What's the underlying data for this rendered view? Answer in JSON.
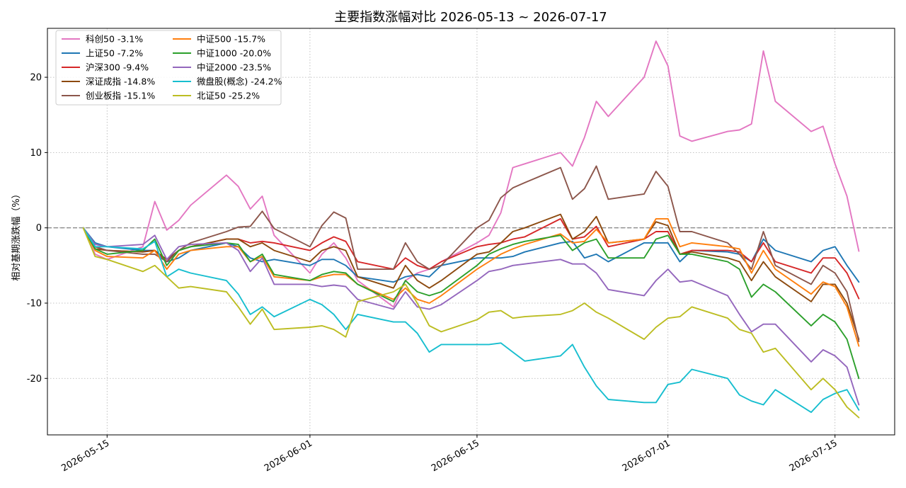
{
  "chart_data": {
    "type": "line",
    "title": "主要指数涨幅对比  2026-05-13 ~ 2026-07-17",
    "xlabel": "",
    "ylabel": "相对基期涨跌幅（%）",
    "x_tick_labels": [
      "2026-05-15",
      "2026-06-01",
      "2026-06-15",
      "2026-07-01",
      "2026-07-15"
    ],
    "x_tick_dates": [
      "2026-05-15",
      "2026-06-01",
      "2026-06-15",
      "2026-07-01",
      "2026-07-15"
    ],
    "y_ticks": [
      -20,
      -10,
      0,
      10,
      20
    ],
    "xlim": [
      "2026-05-10",
      "2026-07-20"
    ],
    "ylim": [
      -27.5,
      26.5
    ],
    "grid": true,
    "legend_position": "top-left",
    "baseline": 0,
    "x": [
      "2026-05-13",
      "2026-05-14",
      "2026-05-15",
      "2026-05-18",
      "2026-05-19",
      "2026-05-20",
      "2026-05-21",
      "2026-05-22",
      "2026-05-25",
      "2026-05-26",
      "2026-05-27",
      "2026-05-28",
      "2026-05-29",
      "2026-06-01",
      "2026-06-02",
      "2026-06-03",
      "2026-06-04",
      "2026-06-05",
      "2026-06-08",
      "2026-06-09",
      "2026-06-10",
      "2026-06-11",
      "2026-06-12",
      "2026-06-15",
      "2026-06-16",
      "2026-06-17",
      "2026-06-18",
      "2026-06-19",
      "2026-06-22",
      "2026-06-23",
      "2026-06-24",
      "2026-06-25",
      "2026-06-26",
      "2026-06-29",
      "2026-06-30",
      "2026-07-01",
      "2026-07-02",
      "2026-07-03",
      "2026-07-06",
      "2026-07-07",
      "2026-07-08",
      "2026-07-09",
      "2026-07-10",
      "2026-07-13",
      "2026-07-14",
      "2026-07-15",
      "2026-07-16",
      "2026-07-17"
    ],
    "series": [
      {
        "name": "科创50 -3.1%",
        "color": "#e377c2",
        "values": [
          0,
          -3.5,
          -4.2,
          -2.5,
          3.5,
          -0.3,
          1.0,
          3.0,
          7.0,
          5.5,
          2.5,
          4.2,
          -1.0,
          -6.0,
          -3.5,
          -2.0,
          -4.0,
          -7.0,
          -10.5,
          -7.0,
          -6.0,
          -5.5,
          -4.5,
          -2.0,
          -1.0,
          2.0,
          8.0,
          8.5,
          10.0,
          8.2,
          12.0,
          16.8,
          14.8,
          20.0,
          24.8,
          21.5,
          12.2,
          11.5,
          12.8,
          13.0,
          13.8,
          23.5,
          16.8,
          12.8,
          13.5,
          8.5,
          4.2,
          -3.1
        ]
      },
      {
        "name": "上证50 -7.2%",
        "color": "#1f77b4",
        "values": [
          0,
          -2.0,
          -2.5,
          -3.0,
          -3.0,
          -4.5,
          -4.0,
          -3.0,
          -2.0,
          -2.5,
          -4.0,
          -4.5,
          -4.2,
          -5.0,
          -4.2,
          -4.2,
          -5.0,
          -6.5,
          -7.2,
          -6.5,
          -6.2,
          -6.5,
          -5.0,
          -4.0,
          -4.0,
          -4.0,
          -3.8,
          -3.2,
          -2.0,
          -1.8,
          -4.0,
          -3.5,
          -4.5,
          -2.0,
          -2.0,
          -2.0,
          -4.5,
          -3.0,
          -3.2,
          -3.5,
          -4.5,
          -1.5,
          -3.0,
          -4.5,
          -3.0,
          -2.5,
          -5.0,
          -7.2
        ]
      },
      {
        "name": "沪深300 -9.4%",
        "color": "#d62728",
        "values": [
          0,
          -2.5,
          -3.0,
          -3.2,
          -3.0,
          -4.5,
          -3.0,
          -2.5,
          -1.5,
          -1.5,
          -2.0,
          -1.8,
          -2.0,
          -3.0,
          -2.0,
          -1.2,
          -1.8,
          -4.5,
          -5.5,
          -4.0,
          -5.0,
          -5.5,
          -4.5,
          -2.5,
          -2.2,
          -2.0,
          -1.5,
          -1.2,
          1.2,
          -1.5,
          -1.2,
          0.2,
          -2.5,
          -1.5,
          -0.5,
          -0.5,
          -3.5,
          -3.0,
          -3.0,
          -3.2,
          -4.5,
          -2.0,
          -4.5,
          -6.0,
          -4.0,
          -4.0,
          -6.0,
          -9.4
        ]
      },
      {
        "name": "深证成指 -14.8%",
        "color": "#8c4a0f",
        "values": [
          0,
          -2.8,
          -3.0,
          -3.2,
          -3.0,
          -4.2,
          -3.0,
          -2.5,
          -1.5,
          -1.5,
          -2.5,
          -2.0,
          -3.0,
          -4.5,
          -3.0,
          -2.5,
          -3.0,
          -6.5,
          -8.0,
          -5.0,
          -7.0,
          -8.0,
          -7.0,
          -3.5,
          -3.2,
          -2.0,
          -0.5,
          0.0,
          1.8,
          -1.5,
          -0.5,
          1.5,
          -2.0,
          -1.5,
          0.8,
          0.3,
          -3.5,
          -3.2,
          -4.0,
          -4.5,
          -7.0,
          -4.5,
          -6.5,
          -9.8,
          -7.5,
          -7.5,
          -10.0,
          -14.8
        ]
      },
      {
        "name": "创业板指 -15.1%",
        "color": "#8c564b",
        "values": [
          0,
          -2.5,
          -3.0,
          -3.5,
          -3.5,
          -4.5,
          -3.0,
          -2.0,
          -0.5,
          0.1,
          0.2,
          2.2,
          -0.1,
          -2.5,
          0.3,
          2.1,
          1.3,
          -5.5,
          -5.5,
          -2.0,
          -4.5,
          -5.5,
          -5.0,
          0.0,
          1.0,
          4.0,
          5.3,
          6.0,
          8.0,
          3.8,
          5.2,
          8.2,
          3.8,
          4.5,
          7.5,
          5.5,
          -0.5,
          -0.5,
          -2.0,
          -3.5,
          -5.5,
          -0.5,
          -5.0,
          -7.5,
          -5.0,
          -6.0,
          -8.5,
          -15.1
        ]
      },
      {
        "name": "中证500 -15.7%",
        "color": "#ff7f0e",
        "values": [
          0,
          -3.0,
          -3.8,
          -4.0,
          -3.0,
          -5.5,
          -3.5,
          -3.0,
          -2.5,
          -2.5,
          -4.5,
          -3.8,
          -6.5,
          -7.0,
          -6.5,
          -6.2,
          -6.2,
          -7.5,
          -9.5,
          -8.0,
          -9.5,
          -10.0,
          -9.0,
          -5.5,
          -4.5,
          -3.5,
          -2.8,
          -2.2,
          -0.8,
          -2.0,
          -1.8,
          -0.2,
          -2.0,
          -1.5,
          1.2,
          1.2,
          -2.5,
          -2.0,
          -2.5,
          -2.8,
          -6.0,
          -3.0,
          -5.5,
          -8.8,
          -7.2,
          -7.8,
          -10.5,
          -15.7
        ]
      },
      {
        "name": "中证1000 -20.0%",
        "color": "#2ca02c",
        "values": [
          0,
          -2.8,
          -3.5,
          -3.0,
          -1.5,
          -5.0,
          -3.0,
          -2.5,
          -2.0,
          -2.2,
          -4.5,
          -3.5,
          -6.2,
          -7.0,
          -6.2,
          -5.8,
          -6.0,
          -7.5,
          -9.8,
          -7.0,
          -8.5,
          -9.0,
          -8.5,
          -5.0,
          -3.5,
          -2.8,
          -2.2,
          -1.8,
          -1.0,
          -3.0,
          -2.0,
          -1.5,
          -4.0,
          -4.0,
          -1.5,
          -1.0,
          -3.5,
          -3.5,
          -4.5,
          -5.5,
          -9.2,
          -7.5,
          -8.5,
          -13.0,
          -11.5,
          -12.5,
          -14.8,
          -20.0
        ]
      },
      {
        "name": "中证2000 -23.5%",
        "color": "#9467bd",
        "values": [
          0,
          -2.2,
          -2.5,
          -2.2,
          -1.0,
          -4.2,
          -2.5,
          -2.2,
          -2.0,
          -3.0,
          -5.8,
          -4.0,
          -7.5,
          -7.5,
          -7.8,
          -7.6,
          -7.8,
          -9.5,
          -10.8,
          -8.5,
          -10.5,
          -10.8,
          -10.2,
          -7.0,
          -5.8,
          -5.5,
          -5.0,
          -4.8,
          -4.2,
          -4.8,
          -4.8,
          -6.0,
          -8.2,
          -9.0,
          -7.0,
          -5.5,
          -7.2,
          -7.0,
          -9.0,
          -11.5,
          -13.8,
          -12.8,
          -12.8,
          -17.8,
          -16.2,
          -17.0,
          -18.5,
          -23.5
        ]
      },
      {
        "name": "微盘股(概念) -24.2%",
        "color": "#17becf",
        "values": [
          0,
          -2.5,
          -2.5,
          -2.8,
          -1.8,
          -6.5,
          -5.5,
          -6.0,
          -7.0,
          -8.8,
          -11.5,
          -10.5,
          -11.8,
          -9.5,
          -10.2,
          -11.5,
          -13.5,
          -11.5,
          -12.5,
          -12.5,
          -14.0,
          -16.5,
          -15.5,
          -15.5,
          -15.5,
          -15.3,
          -16.5,
          -17.7,
          -17.0,
          -15.5,
          -18.5,
          -21.0,
          -22.8,
          -23.2,
          -23.2,
          -20.8,
          -20.5,
          -18.8,
          -20.0,
          -22.2,
          -23.0,
          -23.5,
          -21.5,
          -24.5,
          -22.8,
          -22.0,
          -21.5,
          -24.2
        ]
      },
      {
        "name": "北证50 -25.2%",
        "color": "#bcbd22",
        "values": [
          0,
          -3.8,
          -4.2,
          -5.8,
          -5.0,
          -6.5,
          -8.0,
          -7.8,
          -8.5,
          -10.5,
          -12.8,
          -10.8,
          -13.5,
          -13.2,
          -13.0,
          -13.5,
          -14.5,
          -9.8,
          -8.5,
          -7.5,
          -10.0,
          -13.0,
          -13.8,
          -12.2,
          -11.2,
          -11.0,
          -12.0,
          -11.8,
          -11.5,
          -11.0,
          -10.0,
          -11.2,
          -12.0,
          -14.8,
          -13.2,
          -12.0,
          -11.8,
          -10.5,
          -12.0,
          -13.5,
          -14.0,
          -16.5,
          -16.0,
          -21.5,
          -20.0,
          -21.5,
          -23.8,
          -25.2
        ]
      }
    ]
  }
}
